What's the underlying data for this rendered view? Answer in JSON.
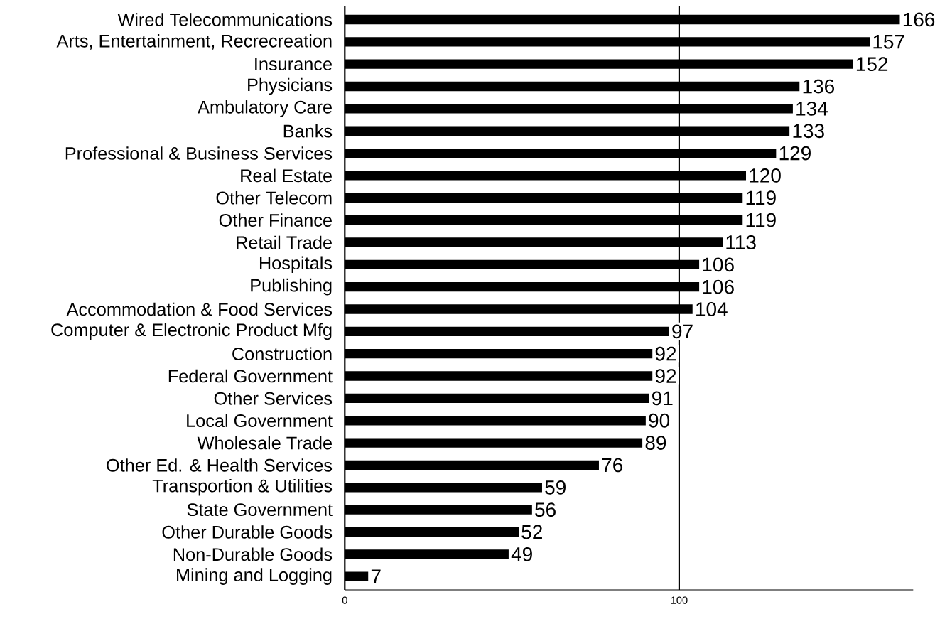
{
  "chart_data": {
    "type": "bar",
    "orientation": "horizontal",
    "color": "#000000",
    "categories": [
      "Wired Telecommunications",
      "Arts, Entertainment, Recrecreation",
      "Insurance",
      "Physicians",
      "Ambulatory Care",
      "Banks",
      "Professional & Business Services",
      "Real Estate",
      "Other Telecom",
      "Other Finance",
      "Retail Trade",
      "Hospitals",
      "Publishing",
      "Accommodation & Food Services",
      "Computer & Electronic Product Mfg",
      "Construction",
      "Federal Government",
      "Other Services",
      "Local Government",
      "Wholesale Trade",
      "Other Ed. & Health Services",
      "Transportion & Utilities",
      "State Government",
      "Other Durable Goods",
      "Non-Durable Goods",
      "Mining and Logging"
    ],
    "values": [
      166,
      157,
      152,
      136,
      134,
      133,
      129,
      120,
      119,
      119,
      113,
      106,
      106,
      104,
      97,
      92,
      92,
      91,
      90,
      89,
      76,
      59,
      56,
      52,
      49,
      7
    ],
    "xlim": [
      0,
      170
    ],
    "xticks": [
      0,
      100
    ],
    "grid": "x",
    "data_labels": true
  }
}
